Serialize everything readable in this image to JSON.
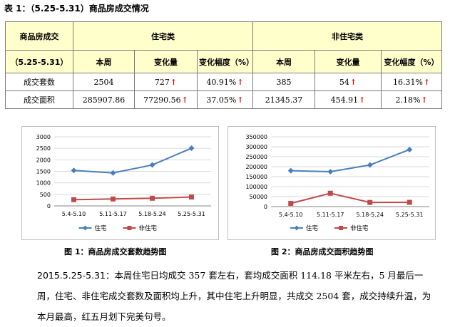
{
  "table": {
    "title": "表 1：（5.25-5.31）商品房成交情况",
    "corner_label": "商品房成交",
    "period_label": "（5.25-5.31）",
    "group_residential": "住宅类",
    "group_nonresidential": "非住宅类",
    "col_week": "本周",
    "col_change": "变化量",
    "col_pct": "变化幅度（%）",
    "rows": [
      {
        "label": "成交套数",
        "res_week": "2504",
        "res_change": "727",
        "res_pct": "40.91%",
        "non_week": "385",
        "non_change": "54",
        "non_pct": "16.31%"
      },
      {
        "label": "成交面积",
        "res_week": "285907.86",
        "res_change": "77290.56",
        "res_pct": "37.05%",
        "non_week": "21345.37",
        "non_change": "454.91",
        "non_pct": "2.18%"
      }
    ],
    "up_arrow": "↑"
  },
  "chart_data": [
    {
      "type": "line",
      "title": "图 1：商品房成交套数趋势图",
      "categories": [
        "5.4-5.10",
        "5.11-5.17",
        "5.18-5.24",
        "5.25-5.31"
      ],
      "ylim": [
        0,
        3000
      ],
      "yticks": [
        "0",
        "500",
        "1000",
        "1500",
        "2000",
        "2500",
        "3000"
      ],
      "ytick_values": [
        0,
        500,
        1000,
        1500,
        2000,
        2500,
        3000
      ],
      "legend_position": "bottom",
      "series": [
        {
          "name": "住宅",
          "color": "#4a7ebb",
          "marker": "diamond",
          "values": [
            1540,
            1430,
            1777,
            2504
          ]
        },
        {
          "name": "非住宅",
          "color": "#be4b48",
          "marker": "square",
          "values": [
            270,
            300,
            331,
            385
          ]
        }
      ]
    },
    {
      "type": "line",
      "title": "图 2：商品房成交面积趋势图",
      "categories": [
        "5.4-5.10",
        "5.11-5.17",
        "5.18-5.24",
        "5.25-5.31"
      ],
      "ylim": [
        0,
        350000
      ],
      "yticks": [
        "0",
        "50000",
        "100000",
        "150000",
        "200000",
        "250000",
        "300000",
        "350000"
      ],
      "ytick_values": [
        0,
        50000,
        100000,
        150000,
        200000,
        250000,
        300000,
        350000
      ],
      "legend_position": "bottom",
      "series": [
        {
          "name": "住宅",
          "color": "#4a7ebb",
          "marker": "diamond",
          "values": [
            180000,
            175000,
            208617,
            285908
          ]
        },
        {
          "name": "非住宅",
          "color": "#be4b48",
          "marker": "square",
          "values": [
            16000,
            67000,
            20890,
            21345
          ]
        }
      ]
    }
  ],
  "summary": {
    "lead": "2015.5.25-5.31",
    "text": "：本周住宅日均成交 357 套左右，套均成交面积 114.18 平米左右，5 月最后一周，住宅、非住宅成交套数及面积均上升，其中住宅上升明显，共成交 2504 套，成交持续升温，为本月最高，红五月划下完美句号。"
  }
}
